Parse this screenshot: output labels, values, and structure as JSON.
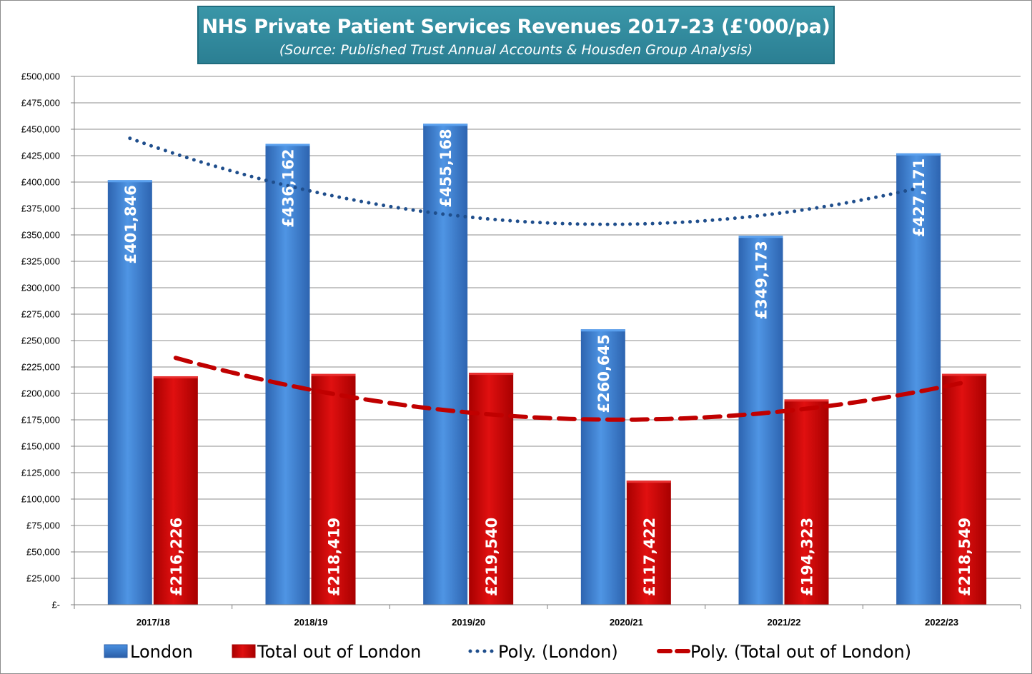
{
  "chart_data": {
    "type": "bar",
    "title": "NHS Private Patient Services Revenues 2017-23 (£'000/pa)",
    "subtitle": "(Source: Published Trust Annual Accounts & Housden Group Analysis)",
    "categories": [
      "2017/18",
      "2018/19",
      "2019/20",
      "2020/21",
      "2021/22",
      "2022/23"
    ],
    "series": [
      {
        "name": "London",
        "color": "#3a78c8",
        "values": [
          401846,
          436162,
          455168,
          260645,
          349173,
          427171
        ],
        "labels": [
          "£401,846",
          "£436,162",
          "£455,168",
          "£260,645",
          "£349,173",
          "£427,171"
        ]
      },
      {
        "name": "Total out of London",
        "color": "#cc0000",
        "values": [
          216226,
          218419,
          219540,
          117422,
          194323,
          218549
        ],
        "labels": [
          "£216,226",
          "£218,419",
          "£219,540",
          "£117,422",
          "£194,323",
          "£218,549"
        ]
      }
    ],
    "trendlines": [
      {
        "name": "Poly. (London)",
        "series": "London",
        "type": "polynomial",
        "style": "dotted",
        "color": "#1f4e8c"
      },
      {
        "name": "Poly. (Total out of London)",
        "series": "Total out of London",
        "type": "polynomial",
        "style": "dashed",
        "color": "#c00000"
      }
    ],
    "ylim": [
      0,
      500000
    ],
    "ystep": 25000,
    "yticks": [
      "£-",
      "£25,000",
      "£50,000",
      "£75,000",
      "£100,000",
      "£125,000",
      "£150,000",
      "£175,000",
      "£200,000",
      "£225,000",
      "£250,000",
      "£275,000",
      "£300,000",
      "£325,000",
      "£350,000",
      "£375,000",
      "£400,000",
      "£425,000",
      "£450,000",
      "£475,000",
      "£500,000"
    ],
    "grid": true,
    "legend_position": "bottom",
    "xlabel": "",
    "ylabel": ""
  }
}
